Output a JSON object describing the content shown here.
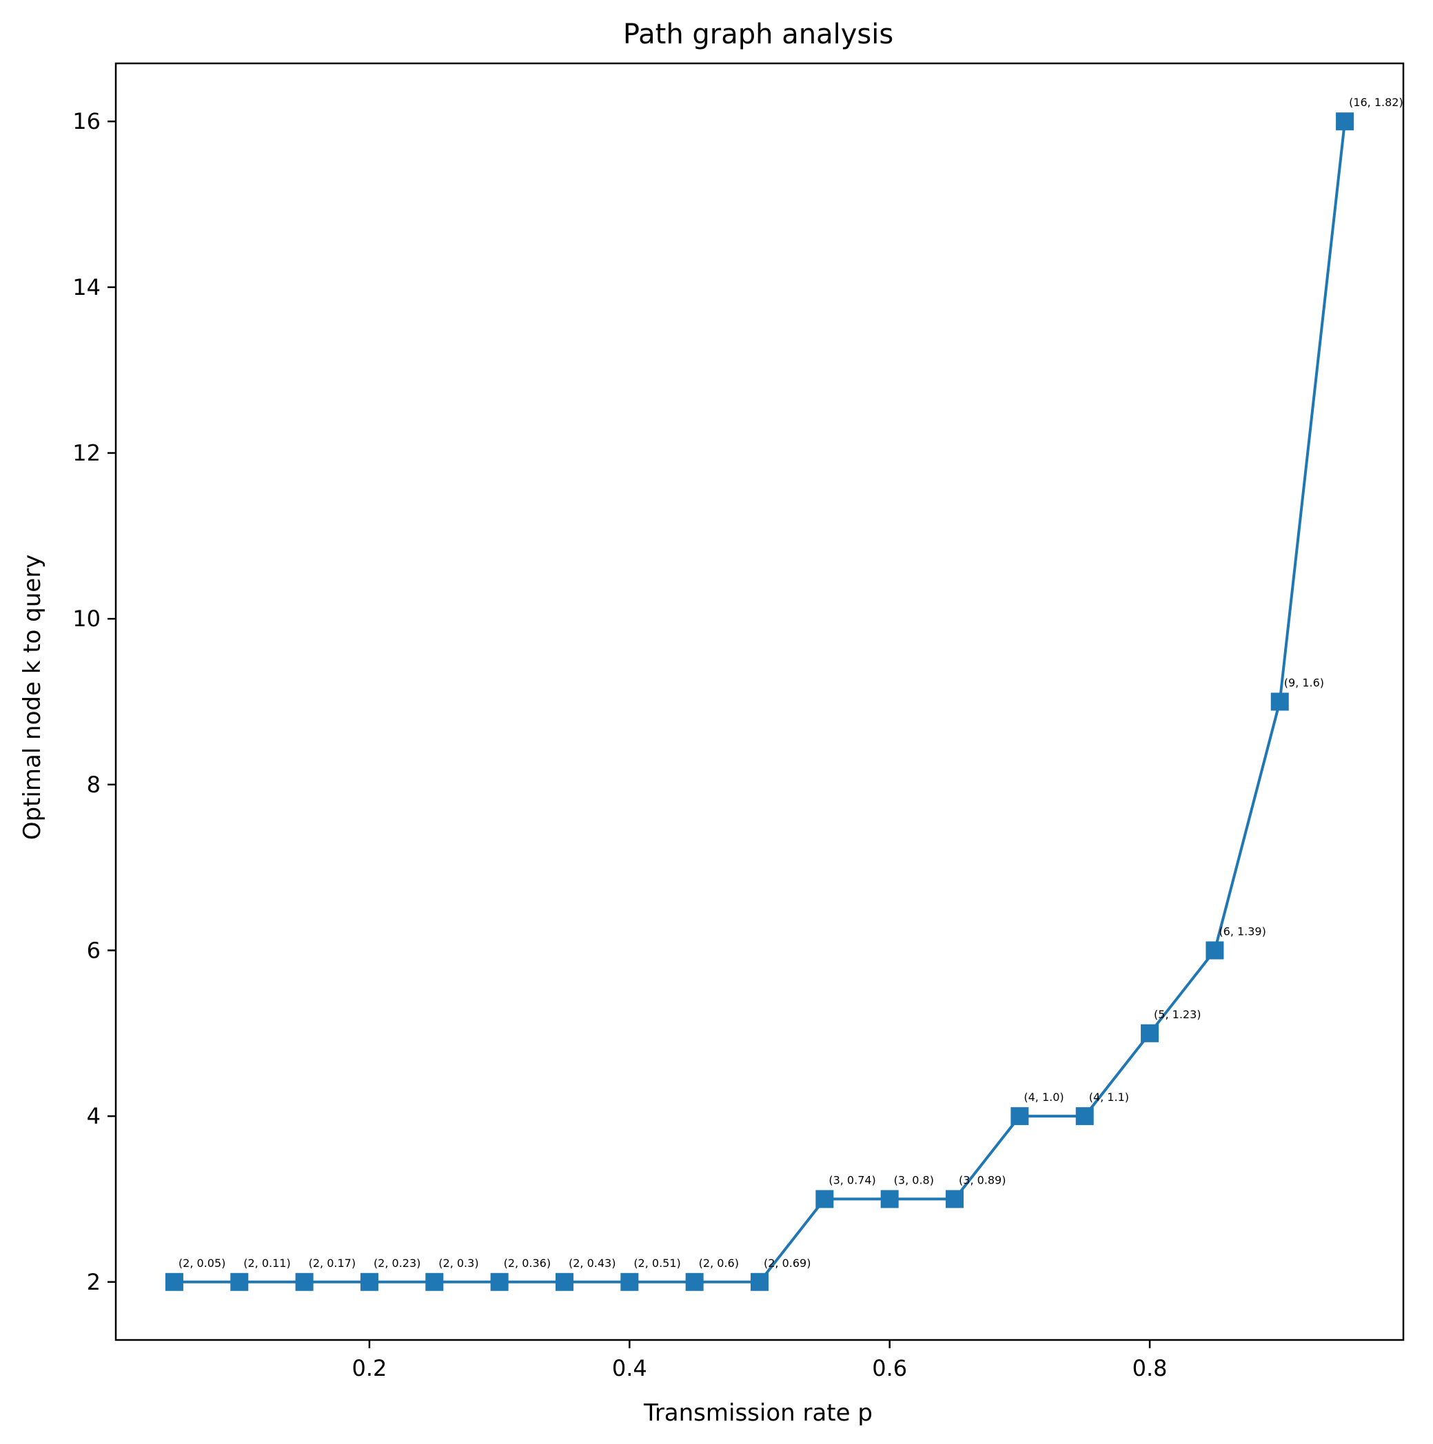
{
  "chart_data": {
    "type": "line",
    "title": "Path graph analysis",
    "xlabel": "Transmission rate p",
    "ylabel": "Optimal node k to query",
    "xlim": [
      0.005,
      0.995
    ],
    "ylim": [
      1.3,
      16.7
    ],
    "xticks": [
      0.2,
      0.4,
      0.6,
      0.8
    ],
    "xtick_labels": [
      "0.2",
      "0.4",
      "0.6",
      "0.8"
    ],
    "yticks": [
      2,
      4,
      6,
      8,
      10,
      12,
      14,
      16
    ],
    "ytick_labels": [
      "2",
      "4",
      "6",
      "8",
      "10",
      "12",
      "14",
      "16"
    ],
    "grid": false,
    "series": [
      {
        "color": "#1f77b4",
        "marker": "square",
        "x": [
          0.05,
          0.1,
          0.15,
          0.2,
          0.25,
          0.3,
          0.35,
          0.4,
          0.45,
          0.5,
          0.55,
          0.6,
          0.65,
          0.7,
          0.75,
          0.8,
          0.85,
          0.9,
          0.95
        ],
        "y": [
          2,
          2,
          2,
          2,
          2,
          2,
          2,
          2,
          2,
          2,
          3,
          3,
          3,
          4,
          4,
          5,
          6,
          9,
          16
        ],
        "labels": [
          "(2, 0.05)",
          "(2, 0.11)",
          "(2, 0.17)",
          "(2, 0.23)",
          "(2, 0.3)",
          "(2, 0.36)",
          "(2, 0.43)",
          "(2, 0.51)",
          "(2, 0.6)",
          "(2, 0.69)",
          "(3, 0.74)",
          "(3, 0.8)",
          "(3, 0.89)",
          "(4, 1.0)",
          "(4, 1.1)",
          "(5, 1.23)",
          "(6, 1.39)",
          "(9, 1.6)",
          "(16, 1.82)"
        ]
      }
    ]
  }
}
